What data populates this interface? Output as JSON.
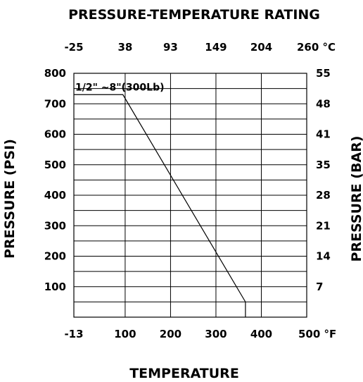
{
  "chart_data": {
    "type": "line",
    "title": "PRESSURE-TEMPERATURE RATING",
    "xlabel": "TEMPERATURE",
    "ylabel_left": "PRESSURE (PSI)",
    "ylabel_right": "PRESSURE (BAR)",
    "xlim_F": [
      -13,
      500
    ],
    "ylim_psi": [
      0,
      800
    ],
    "grid": true,
    "x_ticks_bottom": [
      {
        "label": "-13",
        "value": -13
      },
      {
        "label": "100",
        "value": 100
      },
      {
        "label": "200",
        "value": 200
      },
      {
        "label": "300",
        "value": 300
      },
      {
        "label": "400",
        "value": 400
      },
      {
        "label": "500 °F",
        "value": 500
      }
    ],
    "x_ticks_top": [
      {
        "label": "-25",
        "value": -13
      },
      {
        "label": "38",
        "value": 100
      },
      {
        "label": "93",
        "value": 200
      },
      {
        "label": "149",
        "value": 300
      },
      {
        "label": "204",
        "value": 400
      },
      {
        "label": "260 °C",
        "value": 500
      }
    ],
    "y_ticks_left": [
      {
        "label": "800",
        "value": 800
      },
      {
        "label": "700",
        "value": 700
      },
      {
        "label": "600",
        "value": 600
      },
      {
        "label": "500",
        "value": 500
      },
      {
        "label": "400",
        "value": 400
      },
      {
        "label": "300",
        "value": 300
      },
      {
        "label": "200",
        "value": 200
      },
      {
        "label": "100",
        "value": 100
      }
    ],
    "y_ticks_right": [
      {
        "label": "55",
        "value": 800
      },
      {
        "label": "48",
        "value": 700
      },
      {
        "label": "41",
        "value": 600
      },
      {
        "label": "35",
        "value": 500
      },
      {
        "label": "28",
        "value": 400
      },
      {
        "label": "21",
        "value": 300
      },
      {
        "label": "14",
        "value": 200
      },
      {
        "label": "7",
        "value": 100
      }
    ],
    "series": [
      {
        "name": "1/2\" ~8\"(300Lb)",
        "x": [
          -13,
          95,
          365,
          365
        ],
        "y": [
          730,
          730,
          50,
          0
        ]
      }
    ]
  }
}
